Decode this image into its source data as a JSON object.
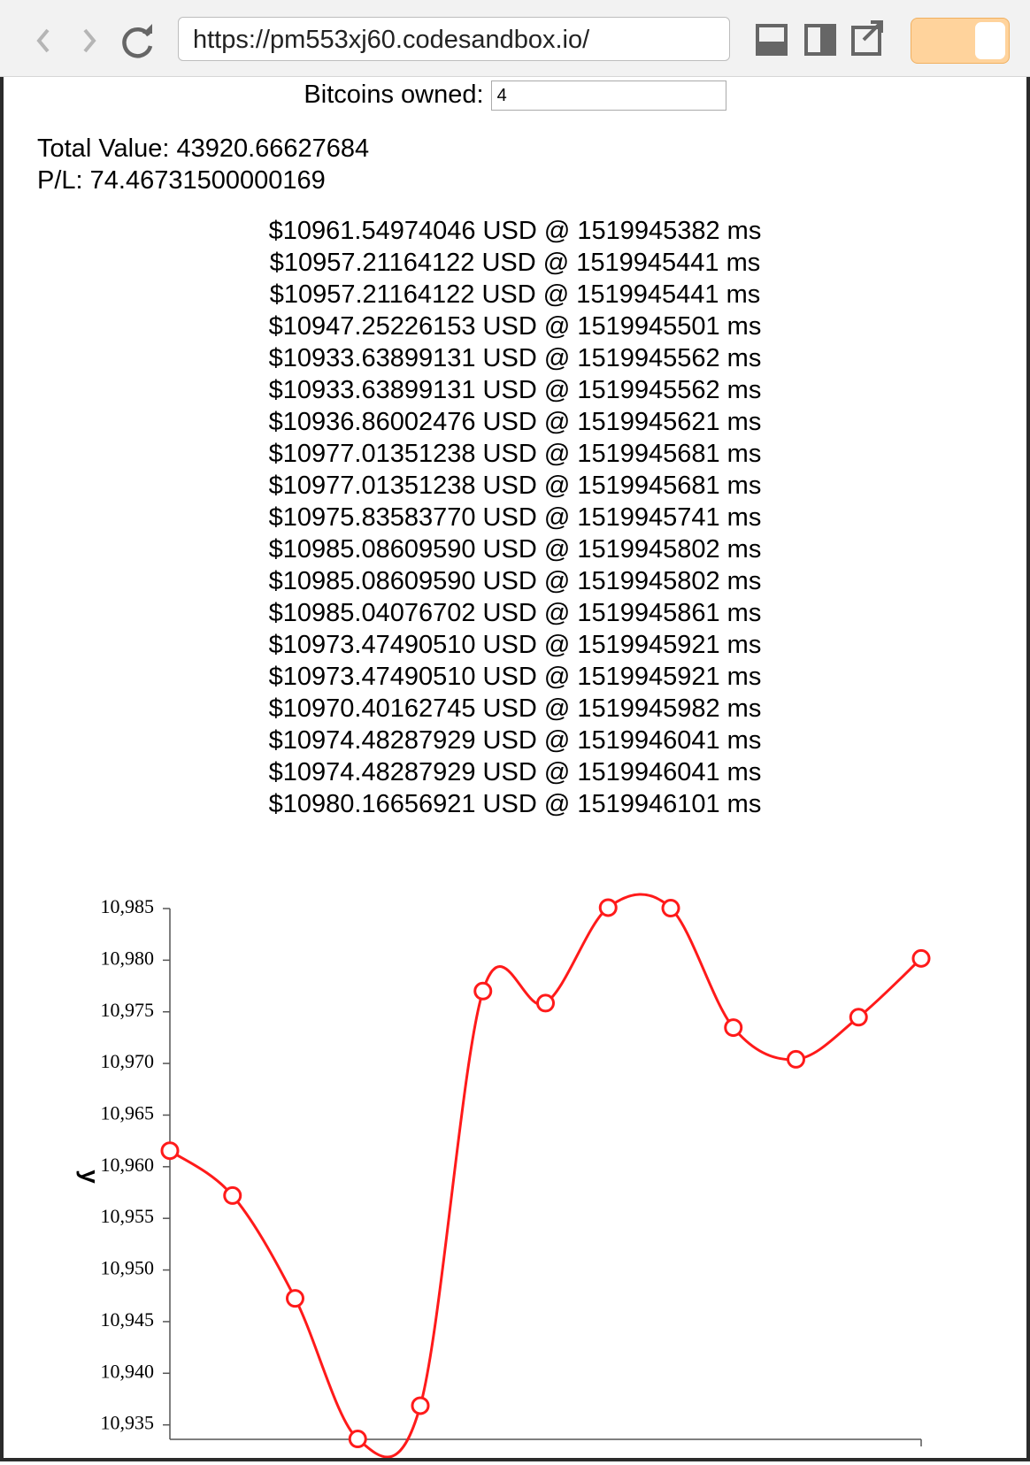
{
  "browser": {
    "url": "https://pm553xj60.codesandbox.io/"
  },
  "form": {
    "label": "Bitcoins owned:",
    "value": "4"
  },
  "summary": {
    "total": "Total Value: 43920.66627684",
    "pl": "P/L: 74.46731500000169"
  },
  "prices": [
    "$10961.54974046 USD @ 1519945382 ms",
    "$10957.21164122 USD @ 1519945441 ms",
    "$10957.21164122 USD @ 1519945441 ms",
    "$10947.25226153 USD @ 1519945501 ms",
    "$10933.63899131 USD @ 1519945562 ms",
    "$10933.63899131 USD @ 1519945562 ms",
    "$10936.86002476 USD @ 1519945621 ms",
    "$10977.01351238 USD @ 1519945681 ms",
    "$10977.01351238 USD @ 1519945681 ms",
    "$10975.83583770 USD @ 1519945741 ms",
    "$10985.08609590 USD @ 1519945802 ms",
    "$10985.08609590 USD @ 1519945802 ms",
    "$10985.04076702 USD @ 1519945861 ms",
    "$10973.47490510 USD @ 1519945921 ms",
    "$10973.47490510 USD @ 1519945921 ms",
    "$10970.40162745 USD @ 1519945982 ms",
    "$10974.48287929 USD @ 1519946041 ms",
    "$10974.48287929 USD @ 1519946041 ms",
    "$10980.16656921 USD @ 1519946101 ms"
  ],
  "chart_data": {
    "type": "line",
    "ylabel": "y",
    "series": [
      {
        "name": null,
        "color": "#ff1a1a",
        "values": [
          10961.55,
          10957.21,
          10947.25,
          10933.64,
          10936.86,
          10977.01,
          10975.84,
          10985.09,
          10985.04,
          10973.47,
          10970.4,
          10974.48,
          10980.17
        ]
      }
    ],
    "ylim": [
      10933.6,
      10985
    ],
    "yticks": [
      {
        "value": 10935,
        "label": "10,935"
      },
      {
        "value": 10940,
        "label": "10,940"
      },
      {
        "value": 10945,
        "label": "10,945"
      },
      {
        "value": 10950,
        "label": "10,950"
      },
      {
        "value": 10955,
        "label": "10,955"
      },
      {
        "value": 10960,
        "label": "10,960"
      },
      {
        "value": 10965,
        "label": "10,965"
      },
      {
        "value": 10970,
        "label": "10,970"
      },
      {
        "value": 10975,
        "label": "10,975"
      },
      {
        "value": 10980,
        "label": "10,980"
      },
      {
        "value": 10985,
        "label": "10,985"
      }
    ]
  }
}
